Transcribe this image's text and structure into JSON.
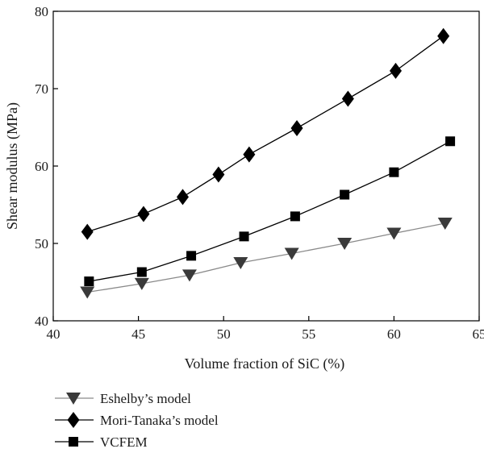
{
  "chart_data": {
    "type": "line",
    "title": "",
    "xlabel": "Volume fraction of SiC (%)",
    "ylabel": "Shear modulus (MPa)",
    "xlim": [
      40,
      65
    ],
    "ylim": [
      40,
      80
    ],
    "xticks": [
      40,
      45,
      50,
      55,
      60,
      65
    ],
    "yticks": [
      40,
      50,
      60,
      70,
      80
    ],
    "grid": false,
    "legend_position": "bottom-left",
    "series": [
      {
        "name": "Eshelby’s model",
        "marker": "triangle-down",
        "line_color": "#8a8a8a",
        "marker_color": "#3a3a3a",
        "x": [
          42.0,
          45.2,
          48.0,
          51.0,
          54.0,
          57.1,
          60.0,
          63.0
        ],
        "y": [
          43.7,
          44.8,
          45.9,
          47.5,
          48.7,
          50.0,
          51.3,
          52.6
        ]
      },
      {
        "name": "Mori-Tanaka’s model",
        "marker": "diamond",
        "line_color": "#000000",
        "marker_color": "#000000",
        "x": [
          42.0,
          45.3,
          47.6,
          49.7,
          51.5,
          54.3,
          57.3,
          60.1,
          62.9
        ],
        "y": [
          51.5,
          53.8,
          56.0,
          58.9,
          61.5,
          64.9,
          68.7,
          72.3,
          76.8
        ]
      },
      {
        "name": "VCFEM",
        "marker": "square",
        "line_color": "#000000",
        "marker_color": "#000000",
        "x": [
          42.1,
          45.2,
          48.1,
          51.2,
          54.2,
          57.1,
          60.0,
          63.3
        ],
        "y": [
          45.1,
          46.3,
          48.4,
          50.9,
          53.5,
          56.3,
          59.2,
          63.2
        ]
      }
    ]
  }
}
